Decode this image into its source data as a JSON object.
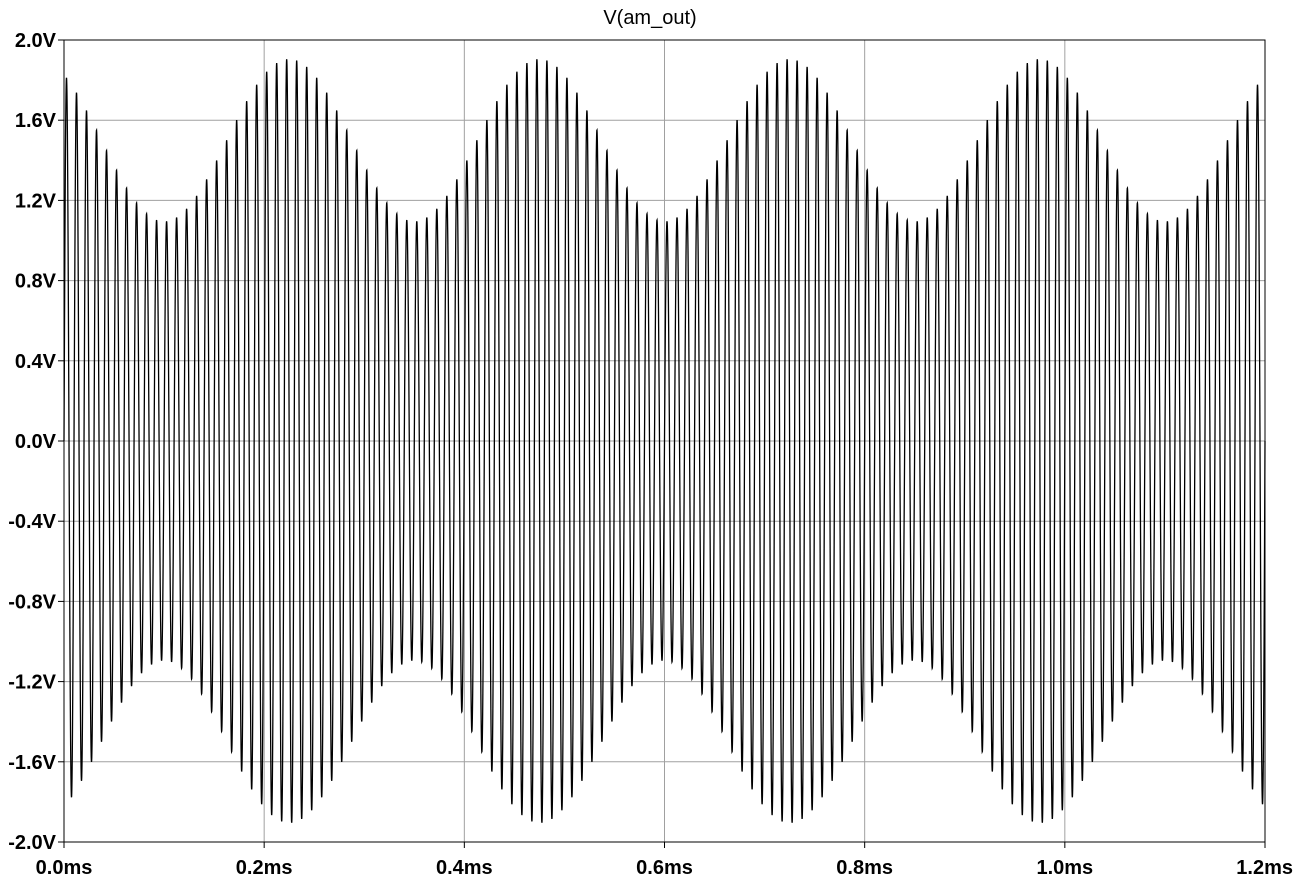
{
  "chart_data": {
    "type": "line",
    "title": "V(am_out)",
    "xlabel": "",
    "ylabel": "",
    "xlim": [
      0.0,
      1.2
    ],
    "ylim": [
      -2.0,
      2.0
    ],
    "x_unit": "ms",
    "y_unit": "V",
    "x_ticks": [
      "0.0ms",
      "0.2ms",
      "0.4ms",
      "0.6ms",
      "0.8ms",
      "1.0ms",
      "1.2ms"
    ],
    "x_tick_values": [
      0.0,
      0.2,
      0.4,
      0.6,
      0.8,
      1.0,
      1.2
    ],
    "y_ticks": [
      "2.0V",
      "1.6V",
      "1.2V",
      "0.8V",
      "0.4V",
      "0.0V",
      "-0.4V",
      "-0.8V",
      "-1.2V",
      "-1.6V",
      "-2.0V"
    ],
    "y_tick_values": [
      2.0,
      1.6,
      1.2,
      0.8,
      0.4,
      0.0,
      -0.4,
      -0.8,
      -1.2,
      -1.6,
      -2.0
    ],
    "grid": true,
    "legend": "none",
    "series": [
      {
        "name": "V(am_out)",
        "color": "#000000",
        "signal": {
          "kind": "am_modulated_sine",
          "carrier_amplitude_V": 1.5,
          "modulation_index": 0.27,
          "carrier_frequency_kHz": 100,
          "modulation_frequency_kHz": 4,
          "envelope_peak_V": 1.91,
          "envelope_trough_V": 1.1,
          "envelope_peak_times_ms": [
            0.225,
            0.475,
            0.725,
            0.975
          ]
        }
      }
    ]
  }
}
